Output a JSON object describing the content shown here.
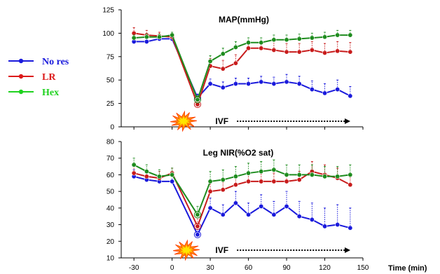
{
  "legend": [
    {
      "name": "No res",
      "color": "#1a1adc"
    },
    {
      "name": "LR",
      "color": "#dc1a1a"
    },
    {
      "name": "Hex",
      "color": "#1fd21f"
    }
  ],
  "xlabel": "Time (min)",
  "xticks": [
    -30,
    0,
    30,
    60,
    90,
    120,
    150
  ],
  "event_label": "IVF",
  "event_icon": "explosion-icon",
  "chart_data": [
    {
      "type": "line",
      "title": "MAP(mmHg)",
      "ylim": [
        0,
        125
      ],
      "yticks": [
        0,
        25,
        50,
        75,
        100,
        125
      ],
      "xlim": [
        -40,
        150
      ],
      "x": [
        -30,
        -20,
        -10,
        0,
        20,
        30,
        40,
        50,
        60,
        70,
        80,
        90,
        100,
        110,
        120,
        130,
        140
      ],
      "series": [
        {
          "name": "No res",
          "color": "#1a1adc",
          "values": [
            91,
            91,
            94,
            94,
            31,
            46,
            42,
            46,
            46,
            48,
            46,
            48,
            46,
            40,
            36,
            40,
            33
          ],
          "errors": [
            3,
            3,
            3,
            3,
            4,
            5,
            6,
            6,
            6,
            6,
            7,
            8,
            8,
            9,
            10,
            10,
            10
          ]
        },
        {
          "name": "LR",
          "color": "#c81c1c",
          "values": [
            100,
            98,
            97,
            96,
            24,
            65,
            62,
            68,
            84,
            84,
            82,
            80,
            80,
            82,
            79,
            81,
            80
          ],
          "errors": [
            6,
            5,
            4,
            3,
            4,
            8,
            9,
            9,
            8,
            8,
            9,
            9,
            9,
            9,
            10,
            10,
            10
          ]
        },
        {
          "name": "Hex",
          "color": "#1e8c1e",
          "values": [
            95,
            96,
            96,
            98,
            29,
            70,
            78,
            85,
            90,
            90,
            93,
            93,
            94,
            95,
            96,
            98,
            98
          ],
          "errors": [
            3,
            3,
            3,
            3,
            4,
            6,
            6,
            6,
            5,
            5,
            5,
            5,
            5,
            5,
            5,
            5,
            5
          ]
        }
      ]
    },
    {
      "type": "line",
      "title": "Leg NIR(%O2 sat)",
      "ylim": [
        10,
        80
      ],
      "yticks": [
        10,
        20,
        30,
        40,
        50,
        60,
        70,
        80
      ],
      "xlim": [
        -40,
        150
      ],
      "x": [
        -30,
        -20,
        -10,
        0,
        20,
        30,
        40,
        50,
        60,
        70,
        80,
        90,
        100,
        110,
        120,
        130,
        140
      ],
      "series": [
        {
          "name": "No res",
          "color": "#1a1adc",
          "values": [
            59,
            57,
            56,
            56,
            24,
            40,
            36,
            43,
            36,
            41,
            36,
            41,
            35,
            33,
            29,
            30,
            28
          ],
          "errors": [
            4,
            4,
            4,
            3,
            4,
            6,
            6,
            7,
            7,
            7,
            8,
            9,
            9,
            10,
            11,
            12,
            12
          ]
        },
        {
          "name": "LR",
          "color": "#c81c1c",
          "values": [
            61,
            59,
            58,
            61,
            29,
            50,
            51,
            54,
            56,
            56,
            56,
            56,
            57,
            62,
            60,
            58,
            54
          ],
          "errors": [
            4,
            4,
            4,
            3,
            5,
            5,
            5,
            5,
            5,
            5,
            5,
            5,
            5,
            6,
            6,
            6,
            6
          ]
        },
        {
          "name": "Hex",
          "color": "#1e8c1e",
          "values": [
            66,
            62,
            59,
            60,
            36,
            56,
            57,
            59,
            61,
            62,
            63,
            60,
            60,
            60,
            59,
            59,
            60
          ],
          "errors": [
            4,
            4,
            4,
            4,
            5,
            6,
            6,
            6,
            6,
            6,
            6,
            6,
            6,
            6,
            6,
            6,
            6
          ]
        }
      ]
    }
  ]
}
